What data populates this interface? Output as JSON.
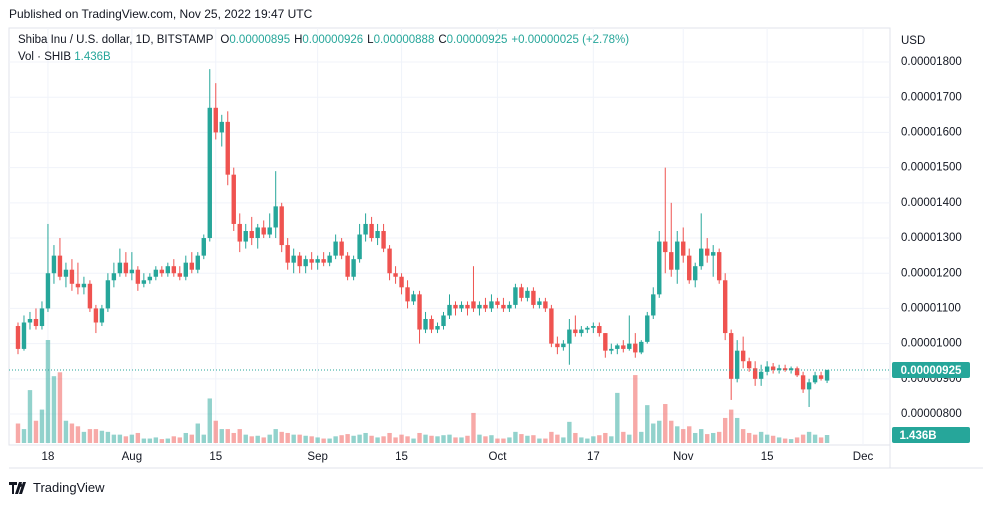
{
  "published": "Published on TradingView.com, Nov 25, 2022 19:47 UTC",
  "footer": {
    "brand": "TradingView"
  },
  "chart_data": {
    "type": "candlestick",
    "legend": {
      "symbol": "Shiba Inu / U.S. dollar, 1D, BITSTAMP",
      "ohlc": [
        {
          "key": "O",
          "value": "0.00000895"
        },
        {
          "key": "H",
          "value": "0.00000926"
        },
        {
          "key": "L",
          "value": "0.00000888"
        },
        {
          "key": "C",
          "value": "0.00000925"
        }
      ],
      "change": "+0.00000025 (+2.78%)",
      "volume_name": "Vol · SHIB"
    },
    "y_axis_label": "USD",
    "up_color": "#26a69a",
    "down_color": "#ef5350",
    "grid": true,
    "xlim": [
      -1.5,
      145.5
    ],
    "xticks": [
      {
        "value": 5,
        "label": "18"
      },
      {
        "value": 19,
        "label": "Aug"
      },
      {
        "value": 33,
        "label": "15"
      },
      {
        "value": 50,
        "label": "Sep"
      },
      {
        "value": 64,
        "label": "15"
      },
      {
        "value": 80,
        "label": "Oct"
      },
      {
        "value": 96,
        "label": "17"
      },
      {
        "value": 111,
        "label": "Nov"
      },
      {
        "value": 125,
        "label": "15"
      },
      {
        "value": 141,
        "label": "Dec"
      }
    ],
    "ylim": [
      7.12e-06,
      1.891e-05
    ],
    "yticks": [
      {
        "value": 8e-06,
        "label": "0.00000800"
      },
      {
        "value": 9e-06,
        "label": "0.00000900"
      },
      {
        "value": 1e-05,
        "label": "0.00001000"
      },
      {
        "value": 1.1e-05,
        "label": "0.00001100"
      },
      {
        "value": 1.2e-05,
        "label": "0.00001200"
      },
      {
        "value": 1.3e-05,
        "label": "0.00001300"
      },
      {
        "value": 1.4e-05,
        "label": "0.00001400"
      },
      {
        "value": 1.5e-05,
        "label": "0.00001500"
      },
      {
        "value": 1.6e-05,
        "label": "0.00001600"
      },
      {
        "value": 1.7e-05,
        "label": "0.00001700"
      },
      {
        "value": 1.8e-05,
        "label": "0.00001800"
      }
    ],
    "last_price": {
      "value": 9.25e-06,
      "label": "0.00000925"
    },
    "open": [
      1.05e-05,
      9.85e-06,
      1.06e-05,
      1.07e-05,
      1.05e-05,
      1.1e-05,
      1.2e-05,
      1.25e-05,
      1.19e-05,
      1.21e-05,
      1.17e-05,
      1.16e-05,
      1.17e-05,
      1.1e-05,
      1.06e-05,
      1.1e-05,
      1.18e-05,
      1.2e-05,
      1.23e-05,
      1.2e-05,
      1.21e-05,
      1.17e-05,
      1.18e-05,
      1.19e-05,
      1.21e-05,
      1.2e-05,
      1.22e-05,
      1.2e-05,
      1.19e-05,
      1.23e-05,
      1.21e-05,
      1.25e-05,
      1.3e-05,
      1.67e-05,
      1.6e-05,
      1.63e-05,
      1.48e-05,
      1.34e-05,
      1.29e-05,
      1.32e-05,
      1.3e-05,
      1.33e-05,
      1.31e-05,
      1.33e-05,
      1.39e-05,
      1.28e-05,
      1.23e-05,
      1.25e-05,
      1.22e-05,
      1.24e-05,
      1.23e-05,
      1.24e-05,
      1.23e-05,
      1.25e-05,
      1.29e-05,
      1.25e-05,
      1.19e-05,
      1.24e-05,
      1.31e-05,
      1.34e-05,
      1.3e-05,
      1.32e-05,
      1.27e-05,
      1.2e-05,
      1.19e-05,
      1.16e-05,
      1.12e-05,
      1.14e-05,
      1.04e-05,
      1.07e-05,
      1.04e-05,
      1.05e-05,
      1.08e-05,
      1.11e-05,
      1.1e-05,
      1.11e-05,
      1.12e-05,
      1.1e-05,
      1.11e-05,
      1.1e-05,
      1.12e-05,
      1.11e-05,
      1.1e-05,
      1.11e-05,
      1.16e-05,
      1.13e-05,
      1.15e-05,
      1.11e-05,
      1.12e-05,
      1.1e-05,
      1e-05,
      9.9e-06,
      1e-05,
      1.04e-05,
      1.03e-05,
      1.04e-05,
      1.045e-05,
      1.05e-05,
      1.03e-05,
      9.8e-06,
      9.85e-06,
      9.95e-06,
      9.85e-06,
      1e-05,
      9.75e-06,
      1.005e-05,
      1.08e-05,
      1.14e-05,
      1.29e-05,
      1.26e-05,
      1.21e-05,
      1.29e-05,
      1.25e-05,
      1.18e-05,
      1.22e-05,
      1.27e-05,
      1.25e-05,
      1.26e-05,
      1.18e-05,
      1.03e-05,
      9e-06,
      9.8e-06,
      9.5e-06,
      9.3e-06,
      9e-06,
      9.2e-06,
      9.35e-06,
      9.25e-06,
      9.3e-06,
      9.25e-06,
      9.3e-06,
      9.1e-06,
      8.7e-06,
      8.9e-06,
      9.1e-06,
      8.95e-06
    ],
    "high": [
      1.06e-05,
      1.08e-05,
      1.09e-05,
      1.1e-05,
      1.12e-05,
      1.34e-05,
      1.28e-05,
      1.3e-05,
      1.23e-05,
      1.24e-05,
      1.23e-05,
      1.19e-05,
      1.18e-05,
      1.11e-05,
      1.11e-05,
      1.2e-05,
      1.23e-05,
      1.27e-05,
      1.26e-05,
      1.26e-05,
      1.22e-05,
      1.2e-05,
      1.2e-05,
      1.22e-05,
      1.22e-05,
      1.23e-05,
      1.24e-05,
      1.22e-05,
      1.25e-05,
      1.26e-05,
      1.26e-05,
      1.31e-05,
      1.78e-05,
      1.74e-05,
      1.65e-05,
      1.66e-05,
      1.5e-05,
      1.37e-05,
      1.34e-05,
      1.36e-05,
      1.34e-05,
      1.35e-05,
      1.37e-05,
      1.49e-05,
      1.4e-05,
      1.3e-05,
      1.27e-05,
      1.26e-05,
      1.25e-05,
      1.26e-05,
      1.25e-05,
      1.26e-05,
      1.26e-05,
      1.31e-05,
      1.3e-05,
      1.26e-05,
      1.25e-05,
      1.34e-05,
      1.37e-05,
      1.36e-05,
      1.34e-05,
      1.34e-05,
      1.28e-05,
      1.22e-05,
      1.2e-05,
      1.18e-05,
      1.15e-05,
      1.15e-05,
      1.09e-05,
      1.08e-05,
      1.06e-05,
      1.09e-05,
      1.14e-05,
      1.12e-05,
      1.12e-05,
      1.12e-05,
      1.22e-05,
      1.12e-05,
      1.13e-05,
      1.14e-05,
      1.13e-05,
      1.13e-05,
      1.12e-05,
      1.17e-05,
      1.17e-05,
      1.16e-05,
      1.16e-05,
      1.13e-05,
      1.13e-05,
      1.11e-05,
      1.02e-05,
      1.01e-05,
      1.07e-05,
      1.08e-05,
      1.05e-05,
      1.05e-05,
      1.06e-05,
      1.06e-05,
      1.03e-05,
      1e-05,
      1e-05,
      1.01e-05,
      1.08e-05,
      1.03e-05,
      1.01e-05,
      1.09e-05,
      1.16e-05,
      1.32e-05,
      1.5e-05,
      1.4e-05,
      1.32e-05,
      1.33e-05,
      1.27e-05,
      1.23e-05,
      1.37e-05,
      1.3e-05,
      1.28e-05,
      1.27e-05,
      1.2e-05,
      1.04e-05,
      1.01e-05,
      1.02e-05,
      9.6e-06,
      9.5e-06,
      9.4e-06,
      9.5e-06,
      9.45e-06,
      9.4e-06,
      9.4e-06,
      9.35e-06,
      9.35e-06,
      9.2e-06,
      9e-06,
      9.2e-06,
      9.2e-06,
      9.26e-06
    ],
    "low": [
      9.7e-06,
      9.8e-06,
      1.04e-05,
      1.04e-05,
      1.04e-05,
      1.09e-05,
      1.17e-05,
      1.18e-05,
      1.16e-05,
      1.15e-05,
      1.14e-05,
      1.14e-05,
      1.09e-05,
      1.03e-05,
      1.05e-05,
      1.09e-05,
      1.16e-05,
      1.19e-05,
      1.19e-05,
      1.18e-05,
      1.15e-05,
      1.16e-05,
      1.17e-05,
      1.18e-05,
      1.19e-05,
      1.19e-05,
      1.19e-05,
      1.18e-05,
      1.18e-05,
      1.2e-05,
      1.2e-05,
      1.24e-05,
      1.29e-05,
      1.58e-05,
      1.56e-05,
      1.45e-05,
      1.32e-05,
      1.26e-05,
      1.27e-05,
      1.28e-05,
      1.27e-05,
      1.3e-05,
      1.3e-05,
      1.3e-05,
      1.26e-05,
      1.21e-05,
      1.2e-05,
      1.2e-05,
      1.2e-05,
      1.21e-05,
      1.21e-05,
      1.22e-05,
      1.22e-05,
      1.24e-05,
      1.24e-05,
      1.18e-05,
      1.18e-05,
      1.23e-05,
      1.29e-05,
      1.29e-05,
      1.28e-05,
      1.26e-05,
      1.18e-05,
      1.17e-05,
      1.14e-05,
      1.1e-05,
      1.11e-05,
      1e-05,
      1.03e-05,
      1.03e-05,
      1.03e-05,
      1.04e-05,
      1.07e-05,
      1.08e-05,
      1.09e-05,
      1.08e-05,
      1.09e-05,
      1.08e-05,
      1.09e-05,
      1.09e-05,
      1.1e-05,
      1.09e-05,
      1.09e-05,
      1.1e-05,
      1.12e-05,
      1.12e-05,
      1.1e-05,
      1.1e-05,
      1.09e-05,
      9.9e-06,
      9.7e-06,
      9.8e-06,
      9.4e-06,
      1.02e-05,
      1.02e-05,
      1.03e-05,
      1.03e-05,
      1.02e-05,
      9.6e-06,
      9.7e-06,
      9.7e-06,
      9.75e-06,
      9.8e-06,
      9.6e-06,
      9.7e-06,
      1e-05,
      1.07e-05,
      1.13e-05,
      1.2e-05,
      1.19e-05,
      1.17e-05,
      1.23e-05,
      1.17e-05,
      1.16e-05,
      1.21e-05,
      1.23e-05,
      1.19e-05,
      1.17e-05,
      1.01e-05,
      8.4e-06,
      8.9e-06,
      9.3e-06,
      9.2e-06,
      8.8e-06,
      8.8e-06,
      9.1e-06,
      9.15e-06,
      9.15e-06,
      9.2e-06,
      9.15e-06,
      9.05e-06,
      8.6e-06,
      8.2e-06,
      8.85e-06,
      8.95e-06,
      8.88e-06
    ],
    "close": [
      9.85e-06,
      1.06e-05,
      1.07e-05,
      1.05e-05,
      1.1e-05,
      1.2e-05,
      1.25e-05,
      1.19e-05,
      1.21e-05,
      1.17e-05,
      1.16e-05,
      1.17e-05,
      1.1e-05,
      1.06e-05,
      1.1e-05,
      1.18e-05,
      1.2e-05,
      1.23e-05,
      1.2e-05,
      1.21e-05,
      1.17e-05,
      1.18e-05,
      1.19e-05,
      1.21e-05,
      1.2e-05,
      1.22e-05,
      1.2e-05,
      1.19e-05,
      1.23e-05,
      1.21e-05,
      1.25e-05,
      1.3e-05,
      1.67e-05,
      1.6e-05,
      1.63e-05,
      1.48e-05,
      1.34e-05,
      1.29e-05,
      1.32e-05,
      1.3e-05,
      1.33e-05,
      1.31e-05,
      1.33e-05,
      1.39e-05,
      1.28e-05,
      1.23e-05,
      1.25e-05,
      1.22e-05,
      1.24e-05,
      1.23e-05,
      1.24e-05,
      1.23e-05,
      1.25e-05,
      1.29e-05,
      1.25e-05,
      1.19e-05,
      1.24e-05,
      1.31e-05,
      1.34e-05,
      1.3e-05,
      1.32e-05,
      1.27e-05,
      1.2e-05,
      1.19e-05,
      1.16e-05,
      1.12e-05,
      1.14e-05,
      1.04e-05,
      1.07e-05,
      1.04e-05,
      1.05e-05,
      1.08e-05,
      1.11e-05,
      1.1e-05,
      1.11e-05,
      1.1e-05,
      1.1e-05,
      1.11e-05,
      1.1e-05,
      1.12e-05,
      1.11e-05,
      1.1e-05,
      1.11e-05,
      1.16e-05,
      1.13e-05,
      1.15e-05,
      1.11e-05,
      1.12e-05,
      1.1e-05,
      1e-05,
      9.9e-06,
      1e-05,
      1.04e-05,
      1.03e-05,
      1.04e-05,
      1.045e-05,
      1.05e-05,
      1.03e-05,
      9.8e-06,
      9.85e-06,
      9.95e-06,
      9.85e-06,
      1e-05,
      9.75e-06,
      1.005e-05,
      1.08e-05,
      1.14e-05,
      1.29e-05,
      1.26e-05,
      1.21e-05,
      1.29e-05,
      1.25e-05,
      1.18e-05,
      1.22e-05,
      1.27e-05,
      1.25e-05,
      1.26e-05,
      1.18e-05,
      1.03e-05,
      9e-06,
      9.8e-06,
      9.5e-06,
      9.3e-06,
      9e-06,
      9.2e-06,
      9.35e-06,
      9.25e-06,
      9.3e-06,
      9.25e-06,
      9.3e-06,
      9.1e-06,
      8.7e-06,
      8.9e-06,
      9.1e-06,
      9e-06,
      9.25e-06
    ],
    "volume": {
      "values": [
        3.5,
        2.5,
        9.5,
        4,
        6,
        18.5,
        12,
        12.7,
        4,
        3.5,
        3,
        2,
        2.5,
        2.5,
        2.2,
        2,
        1.5,
        1.5,
        1.2,
        1.5,
        1.8,
        0.8,
        0.8,
        1.0,
        0.7,
        0.8,
        1.2,
        1.0,
        1.8,
        1.5,
        3.5,
        1.5,
        8.0,
        4,
        2.5,
        2.5,
        1.8,
        2.5,
        1.5,
        1.2,
        1.3,
        1.0,
        1.5,
        2.5,
        2.0,
        1.8,
        1.5,
        1.5,
        1.3,
        1.2,
        1.0,
        0.8,
        0.8,
        1.2,
        1.4,
        1.6,
        1.3,
        1.5,
        1.8,
        1.3,
        1.0,
        1.2,
        1.8,
        1.0,
        1.5,
        1.2,
        0.8,
        1.8,
        1.5,
        1.3,
        1.2,
        1.4,
        1.5,
        1.0,
        1.0,
        1.3,
        5.4,
        1.5,
        1.2,
        1.4,
        0.8,
        0.8,
        1.0,
        2.0,
        1.6,
        1.3,
        1.4,
        0.8,
        0.8,
        2.0,
        1.5,
        1.0,
        3.8,
        1.8,
        1.0,
        0.8,
        1.2,
        1.4,
        1.8,
        1.2,
        9.0,
        2.0,
        1.5,
        12.2,
        2.0,
        6.8,
        3.5,
        4.0,
        7.0,
        4.0,
        3.0,
        2.5,
        3.0,
        1.8,
        2.5,
        1.6,
        1.8,
        2.0,
        4.5,
        6.0,
        4.5,
        2.5,
        1.8,
        1.5,
        2.0,
        1.5,
        1.3,
        1.0,
        0.8,
        0.7,
        1.0,
        1.5,
        2.0,
        1.5,
        1.0,
        1.436
      ],
      "last_label": "1.436B"
    }
  }
}
